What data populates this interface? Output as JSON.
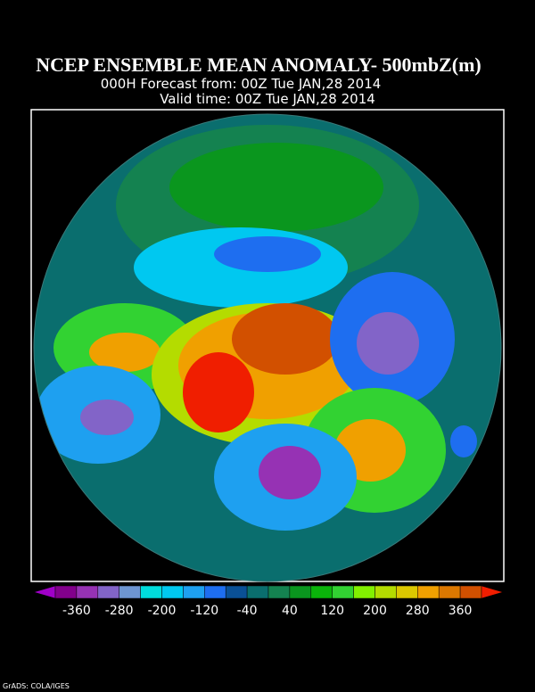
{
  "header": {
    "title": "NCEP ENSEMBLE MEAN ANOMALY- 500mbZ(m)",
    "forecast": "000H Forecast from: 00Z Tue JAN,28 2014",
    "valid": "Valid time: 00Z Tue JAN,28 2014"
  },
  "colorbar": {
    "ticks": [
      -360,
      -280,
      -200,
      -120,
      -40,
      40,
      120,
      200,
      280,
      360
    ],
    "colors": [
      "#a000c8",
      "#82008c",
      "#9632b4",
      "#8264c8",
      "#6e96d2",
      "#00dcdc",
      "#00c8f0",
      "#1ea0f0",
      "#1e6ef0",
      "#0a5096",
      "#0a6e6e",
      "#148250",
      "#0a961e",
      "#0ab40a",
      "#32d232",
      "#82f000",
      "#b4dc00",
      "#dcc800",
      "#f0a000",
      "#dc7800",
      "#d25000",
      "#f01e00"
    ]
  },
  "footer": "GrADS: COLA/IGES"
}
